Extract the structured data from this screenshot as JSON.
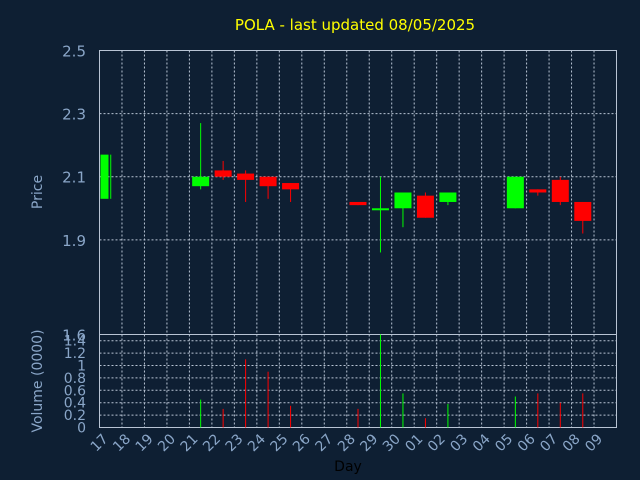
{
  "chart_data": {
    "type": "candlestick",
    "title": "POLA - last updated 08/05/2025",
    "xlabel": "Day",
    "ylabel_price": "Price",
    "ylabel_volume": "Volume (0000)",
    "x_tick_labels": [
      "17",
      "18",
      "19",
      "20",
      "21",
      "22",
      "23",
      "24",
      "25",
      "26",
      "27",
      "28",
      "29",
      "30",
      "01",
      "02",
      "03",
      "04",
      "05",
      "06",
      "07",
      "08",
      "09"
    ],
    "price_axis": {
      "ylim": [
        1.6,
        2.5
      ],
      "ticks": [
        "2.5",
        "2.3",
        "2.1",
        "1.9",
        "1.6"
      ],
      "tick_values": [
        2.5,
        2.3,
        2.1,
        1.9,
        1.6
      ]
    },
    "volume_axis": {
      "ylim": [
        0,
        1.5
      ],
      "ticks": [
        "1.4",
        "1.2",
        "1",
        "0.8",
        "0.6",
        "0.4",
        "0.2",
        "0"
      ],
      "tick_values": [
        1.4,
        1.2,
        1.0,
        0.8,
        0.6,
        0.4,
        0.2,
        0
      ]
    },
    "grid": true,
    "colors": {
      "up": "#00ff00",
      "down": "#ff0000",
      "background": "#0e1f33",
      "grid": "#b8c4d4",
      "text": "#8aa6c8",
      "title": "#ffff00"
    },
    "candles": [
      {
        "day": "17",
        "open": 2.03,
        "high": 2.17,
        "low": 2.03,
        "close": 2.17,
        "volume": 0.0
      },
      {
        "day": "21",
        "open": 2.07,
        "high": 2.27,
        "low": 2.06,
        "close": 2.1,
        "volume": 0.45
      },
      {
        "day": "22",
        "open": 2.12,
        "high": 2.15,
        "low": 2.09,
        "close": 2.1,
        "volume": 0.3
      },
      {
        "day": "23",
        "open": 2.11,
        "high": 2.12,
        "low": 2.02,
        "close": 2.09,
        "volume": 1.1
      },
      {
        "day": "24",
        "open": 2.1,
        "high": 2.1,
        "low": 2.03,
        "close": 2.07,
        "volume": 0.9
      },
      {
        "day": "25",
        "open": 2.08,
        "high": 2.08,
        "low": 2.02,
        "close": 2.06,
        "volume": 0.35
      },
      {
        "day": "28",
        "open": 2.02,
        "high": 2.02,
        "low": 2.01,
        "close": 2.01,
        "volume": 0.3
      },
      {
        "day": "29",
        "open": 2.0,
        "high": 2.1,
        "low": 1.86,
        "close": 2.0,
        "volume": 1.5
      },
      {
        "day": "30",
        "open": 2.0,
        "high": 2.05,
        "low": 1.94,
        "close": 2.05,
        "volume": 0.55
      },
      {
        "day": "01",
        "open": 2.04,
        "high": 2.05,
        "low": 1.97,
        "close": 1.97,
        "volume": 0.15
      },
      {
        "day": "02",
        "open": 2.02,
        "high": 2.05,
        "low": 2.01,
        "close": 2.05,
        "volume": 0.38
      },
      {
        "day": "05",
        "open": 2.0,
        "high": 2.1,
        "low": 2.0,
        "close": 2.1,
        "volume": 0.5
      },
      {
        "day": "06",
        "open": 2.06,
        "high": 2.06,
        "low": 2.04,
        "close": 2.05,
        "volume": 0.55
      },
      {
        "day": "07",
        "open": 2.09,
        "high": 2.1,
        "low": 2.01,
        "close": 2.02,
        "volume": 0.4
      },
      {
        "day": "08",
        "open": 2.02,
        "high": 2.02,
        "low": 1.92,
        "close": 1.96,
        "volume": 0.55
      }
    ]
  }
}
